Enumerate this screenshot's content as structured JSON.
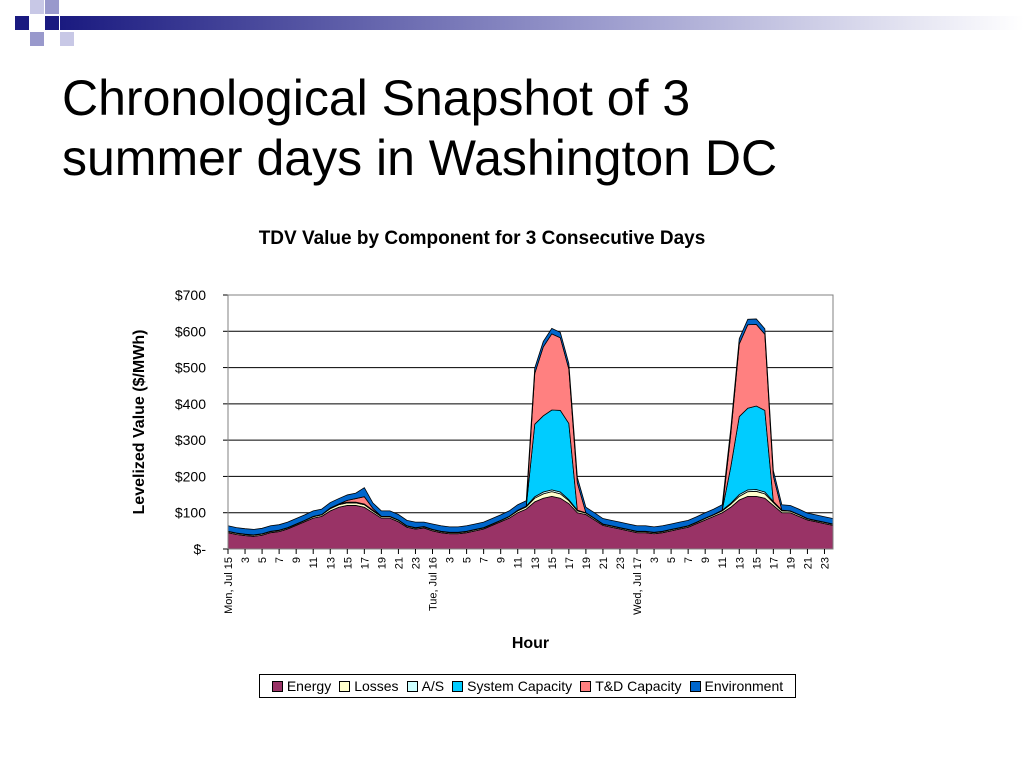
{
  "slide": {
    "title_line1": "Chronological Snapshot of 3",
    "title_line2": "summer days in Washington DC"
  },
  "chart_data": {
    "type": "area",
    "stacked": true,
    "title": "TDV Value by Component for 3 Consecutive Days",
    "xlabel": "Hour",
    "ylabel": "Levelized Value ($/MWh)",
    "ylim": [
      0,
      700
    ],
    "y_ticks": [
      0,
      100,
      200,
      300,
      400,
      500,
      600,
      700
    ],
    "y_tick_labels": [
      "$-",
      "$100",
      "$200",
      "$300",
      "$400",
      "$500",
      "$600",
      "$700"
    ],
    "grid": true,
    "legend_position": "bottom",
    "x_tick_labels": [
      "Mon, Jul 15",
      "3",
      "5",
      "7",
      "9",
      "11",
      "13",
      "15",
      "17",
      "19",
      "21",
      "23",
      "Tue, Jul 16",
      "3",
      "5",
      "7",
      "9",
      "11",
      "13",
      "15",
      "17",
      "19",
      "21",
      "23",
      "Wed, Jul 17",
      "3",
      "5",
      "7",
      "9",
      "11",
      "13",
      "15",
      "17",
      "19",
      "21",
      "23"
    ],
    "x": [
      1,
      2,
      3,
      4,
      5,
      6,
      7,
      8,
      9,
      10,
      11,
      12,
      13,
      14,
      15,
      16,
      17,
      18,
      19,
      20,
      21,
      22,
      23,
      24,
      25,
      26,
      27,
      28,
      29,
      30,
      31,
      32,
      33,
      34,
      35,
      36,
      37,
      38,
      39,
      40,
      41,
      42,
      43,
      44,
      45,
      46,
      47,
      48,
      49,
      50,
      51,
      52,
      53,
      54,
      55,
      56,
      57,
      58,
      59,
      60,
      61,
      62,
      63,
      64,
      65,
      66,
      67,
      68,
      69,
      70,
      71,
      72
    ],
    "series": [
      {
        "name": "Energy",
        "color": "#993366",
        "values": [
          45,
          40,
          37,
          35,
          38,
          45,
          48,
          55,
          65,
          75,
          85,
          90,
          105,
          115,
          120,
          120,
          115,
          100,
          85,
          85,
          75,
          60,
          55,
          58,
          50,
          45,
          42,
          42,
          45,
          50,
          55,
          65,
          75,
          85,
          100,
          110,
          130,
          140,
          145,
          140,
          125,
          100,
          95,
          80,
          65,
          60,
          55,
          50,
          45,
          45,
          42,
          45,
          50,
          55,
          60,
          70,
          80,
          90,
          100,
          115,
          135,
          145,
          145,
          140,
          120,
          100,
          100,
          90,
          80,
          75,
          70,
          65
        ]
      },
      {
        "name": "Losses",
        "color": "#ffffcc",
        "values": [
          3,
          3,
          3,
          3,
          3,
          3,
          3,
          3,
          3,
          3,
          4,
          4,
          6,
          7,
          7,
          7,
          7,
          5,
          4,
          4,
          4,
          3,
          3,
          3,
          3,
          3,
          3,
          3,
          3,
          3,
          3,
          3,
          3,
          4,
          5,
          6,
          10,
          12,
          13,
          12,
          8,
          5,
          4,
          4,
          3,
          3,
          3,
          3,
          3,
          3,
          3,
          3,
          3,
          3,
          3,
          3,
          4,
          4,
          5,
          8,
          10,
          13,
          14,
          12,
          8,
          5,
          4,
          4,
          3,
          3,
          3,
          3
        ]
      },
      {
        "name": "A/S",
        "color": "#ccffff",
        "values": [
          1,
          1,
          1,
          1,
          1,
          1,
          1,
          1,
          1,
          1,
          1,
          1,
          2,
          2,
          2,
          2,
          2,
          2,
          1,
          1,
          1,
          1,
          1,
          1,
          1,
          1,
          1,
          1,
          1,
          1,
          1,
          1,
          1,
          1,
          2,
          2,
          4,
          5,
          5,
          5,
          3,
          2,
          1,
          1,
          1,
          1,
          1,
          1,
          1,
          1,
          1,
          1,
          1,
          1,
          1,
          1,
          1,
          1,
          2,
          3,
          5,
          5,
          5,
          5,
          3,
          2,
          1,
          1,
          1,
          1,
          1,
          1
        ]
      },
      {
        "name": "System Capacity",
        "color": "#00ccff",
        "values": [
          0,
          0,
          0,
          0,
          0,
          0,
          0,
          0,
          0,
          0,
          0,
          0,
          0,
          0,
          0,
          0,
          0,
          0,
          0,
          0,
          0,
          0,
          0,
          0,
          0,
          0,
          0,
          0,
          0,
          0,
          0,
          0,
          0,
          0,
          0,
          0,
          200,
          210,
          220,
          225,
          210,
          0,
          0,
          0,
          0,
          0,
          0,
          0,
          0,
          0,
          0,
          0,
          0,
          0,
          0,
          0,
          0,
          0,
          0,
          100,
          215,
          225,
          230,
          225,
          0,
          0,
          0,
          0,
          0,
          0,
          0,
          0
        ]
      },
      {
        "name": "T&D Capacity",
        "color": "#ff8080",
        "values": [
          0,
          0,
          0,
          0,
          0,
          0,
          0,
          0,
          0,
          0,
          0,
          0,
          0,
          0,
          5,
          10,
          20,
          5,
          0,
          0,
          0,
          0,
          0,
          0,
          0,
          0,
          0,
          0,
          0,
          0,
          0,
          0,
          0,
          0,
          0,
          0,
          140,
          190,
          210,
          200,
          150,
          75,
          0,
          0,
          0,
          0,
          0,
          0,
          0,
          0,
          0,
          0,
          0,
          0,
          0,
          0,
          0,
          0,
          0,
          90,
          200,
          230,
          225,
          210,
          70,
          0,
          0,
          0,
          0,
          0,
          0,
          0
        ]
      },
      {
        "name": "Environment",
        "color": "#0066cc",
        "values": [
          15,
          15,
          15,
          15,
          15,
          15,
          15,
          15,
          15,
          15,
          15,
          15,
          15,
          15,
          15,
          15,
          25,
          15,
          15,
          15,
          15,
          15,
          15,
          12,
          15,
          15,
          15,
          15,
          15,
          15,
          15,
          15,
          15,
          15,
          15,
          15,
          15,
          15,
          15,
          15,
          15,
          15,
          15,
          15,
          15,
          15,
          15,
          15,
          15,
          15,
          15,
          15,
          15,
          15,
          15,
          15,
          15,
          15,
          15,
          15,
          15,
          15,
          15,
          15,
          15,
          15,
          15,
          15,
          15,
          15,
          15,
          15
        ]
      }
    ]
  },
  "colors": {
    "title_text": "#000000",
    "deco_navy": "#1a1a80",
    "deco_lavender": "#9999cc"
  }
}
